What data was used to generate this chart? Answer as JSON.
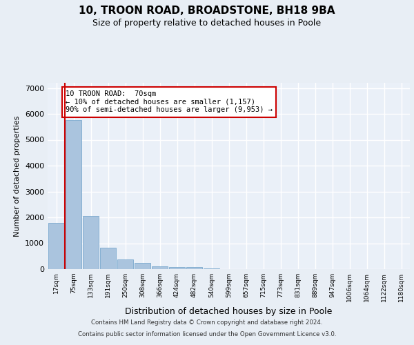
{
  "title_line1": "10, TROON ROAD, BROADSTONE, BH18 9BA",
  "title_line2": "Size of property relative to detached houses in Poole",
  "xlabel": "Distribution of detached houses by size in Poole",
  "ylabel": "Number of detached properties",
  "categories": [
    "17sqm",
    "75sqm",
    "133sqm",
    "191sqm",
    "250sqm",
    "308sqm",
    "366sqm",
    "424sqm",
    "482sqm",
    "540sqm",
    "599sqm",
    "657sqm",
    "715sqm",
    "773sqm",
    "831sqm",
    "889sqm",
    "947sqm",
    "1006sqm",
    "1064sqm",
    "1122sqm",
    "1180sqm"
  ],
  "values": [
    1800,
    5750,
    2060,
    820,
    370,
    240,
    120,
    90,
    70,
    30,
    10,
    0,
    0,
    0,
    0,
    0,
    0,
    0,
    0,
    0,
    0
  ],
  "bar_color": "#aac4de",
  "bar_edge_color": "#6a9fc8",
  "annotation_text": "10 TROON ROAD:  70sqm\n← 10% of detached houses are smaller (1,157)\n90% of semi-detached houses are larger (9,953) →",
  "annotation_box_color": "#ffffff",
  "annotation_box_edge_color": "#cc0000",
  "vline_color": "#cc0000",
  "vline_x_index": 1,
  "ylim": [
    0,
    7200
  ],
  "yticks": [
    0,
    1000,
    2000,
    3000,
    4000,
    5000,
    6000,
    7000
  ],
  "footer_line1": "Contains HM Land Registry data © Crown copyright and database right 2024.",
  "footer_line2": "Contains public sector information licensed under the Open Government Licence v3.0.",
  "background_color": "#e8eef5",
  "plot_bg_color": "#eaf0f8",
  "grid_color": "#ffffff"
}
